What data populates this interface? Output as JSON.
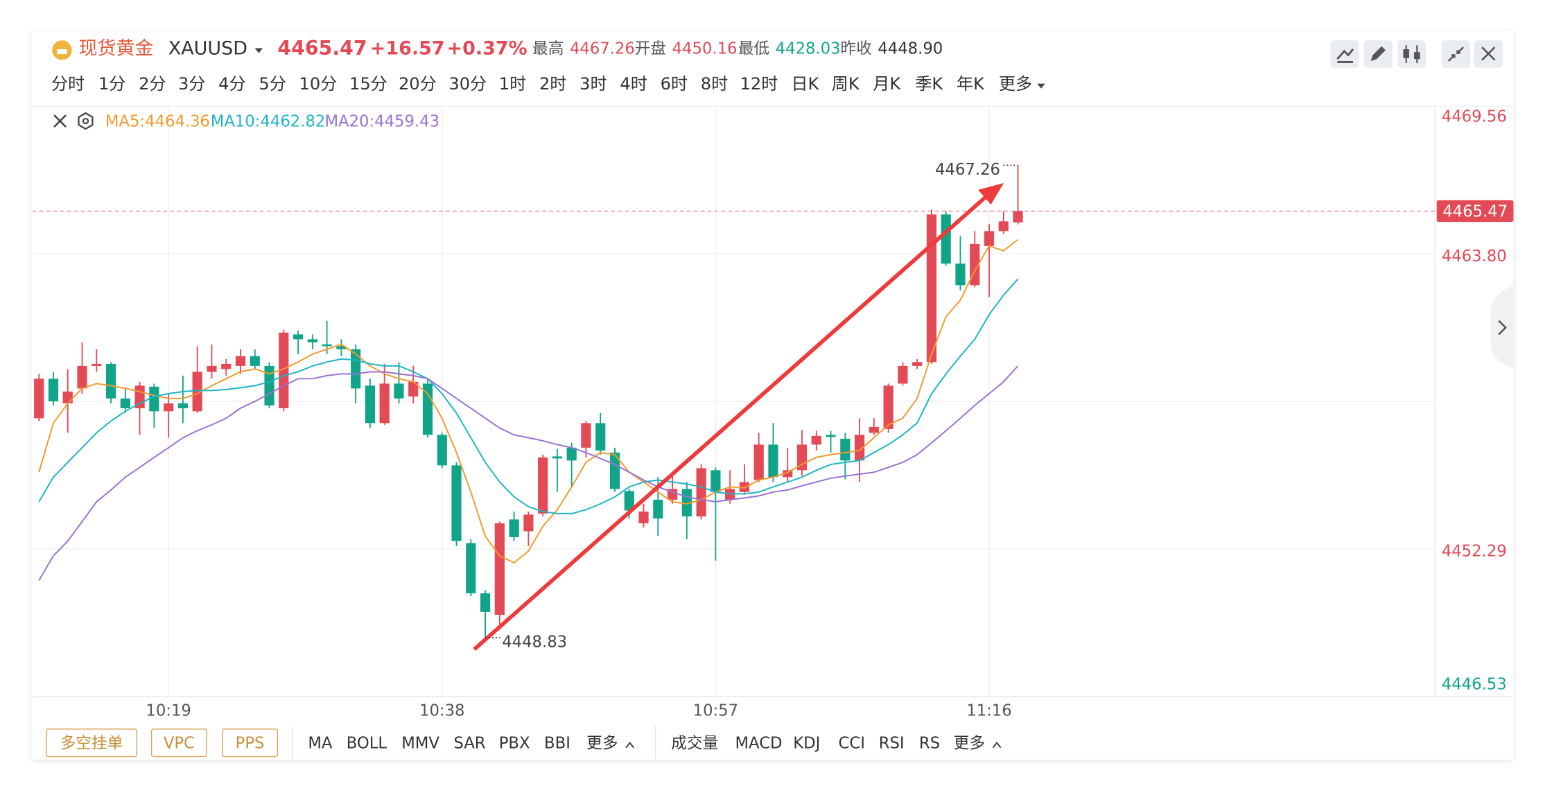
{
  "header": {
    "title": "现货黄金",
    "symbol": "XAUUSD",
    "price": "4465.47",
    "change": "+16.57",
    "change_pct": "+0.37%",
    "stats": [
      {
        "label": "最高",
        "value": "4467.26"
      },
      {
        "label": "开盘",
        "value": "4450.16"
      },
      {
        "label": "最低",
        "value": "4428.03"
      },
      {
        "label": "昨收",
        "value": "4448.90"
      }
    ]
  },
  "timeframes": {
    "items": [
      "分时",
      "1分",
      "2分",
      "3分",
      "4分",
      "5分",
      "10分",
      "15分",
      "20分",
      "30分",
      "1时",
      "2时",
      "3时",
      "4时",
      "6时",
      "8时",
      "12时",
      "日K",
      "周K",
      "月K",
      "季K",
      "年K",
      "更多"
    ],
    "active": 1
  },
  "chart_data": {
    "type": "candlestick",
    "categories": [
      null,
      null,
      null,
      null,
      null,
      null,
      null,
      null,
      null,
      "10:19",
      null,
      null,
      null,
      null,
      null,
      null,
      null,
      null,
      null,
      null,
      null,
      null,
      null,
      null,
      null,
      null,
      null,
      null,
      "10:38",
      null,
      null,
      null,
      null,
      null,
      null,
      null,
      null,
      null,
      null,
      null,
      null,
      null,
      null,
      null,
      null,
      null,
      null,
      "10:57",
      null,
      null,
      null,
      null,
      null,
      null,
      null,
      null,
      null,
      null,
      null,
      null,
      null,
      null,
      null,
      null,
      null,
      null,
      "11:16",
      null,
      null
    ],
    "open": [
      4457.39,
      4458.93,
      4457.97,
      4458.55,
      4459.43,
      4459.51,
      4458.16,
      4457.78,
      4458.62,
      4457.66,
      4457.97,
      4457.66,
      4459.2,
      4459.31,
      4459.43,
      4459.81,
      4459.43,
      4457.78,
      4460.66,
      4460.47,
      4460.27,
      4460.2,
      4460.08,
      4458.66,
      4457.2,
      4458.74,
      4458.24,
      4458.74,
      4456.74,
      4455.55,
      4452.52,
      4450.56,
      4449.72,
      4453.44,
      4452.98,
      4453.67,
      4455.9,
      4456.24,
      4456.24,
      4457.2,
      4456.05,
      4454.55,
      4453.29,
      4454.21,
      4454.21,
      4454.63,
      4453.56,
      4455.36,
      4454.21,
      4454.51,
      4454.98,
      4456.36,
      4455.09,
      4455.36,
      4456.36,
      4456.74,
      4456.59,
      4455.74,
      4456.82,
      4456.97,
      4458.74,
      4459.43,
      4459.58,
      4465.34,
      4463.42,
      4462.58,
      4464.11,
      4464.69,
      4465.03
    ],
    "high": [
      4459.12,
      4459.2,
      4459.31,
      4460.35,
      4460.08,
      4459.58,
      4458.55,
      4458.81,
      4458.74,
      4458.35,
      4459.05,
      4460.2,
      4460.27,
      4459.7,
      4460.08,
      4460.08,
      4459.58,
      4460.85,
      4460.81,
      4460.66,
      4461.19,
      4460.47,
      4460.27,
      4458.93,
      4459.51,
      4459.58,
      4459.43,
      4458.93,
      4456.82,
      4455.67,
      4452.67,
      4450.68,
      4453.36,
      4453.75,
      4453.75,
      4455.97,
      4456.2,
      4456.43,
      4457.28,
      4457.59,
      4456.24,
      4454.63,
      4454.05,
      4455.09,
      4455.21,
      4454.9,
      4455.59,
      4455.47,
      4455.36,
      4455.59,
      4456.82,
      4457.2,
      4456.24,
      4456.93,
      4456.9,
      4456.9,
      4456.82,
      4457.39,
      4457.39,
      4458.74,
      4459.58,
      4459.7,
      4465.53,
      4465.46,
      4464.5,
      4464.69,
      4464.96,
      4465.46,
      4467.26
    ],
    "low": [
      4457.28,
      4457.89,
      4456.82,
      4458.35,
      4459.2,
      4457.97,
      4457.59,
      4456.74,
      4457.01,
      4456.63,
      4457.2,
      4457.59,
      4458.93,
      4459.05,
      4459.12,
      4459.31,
      4457.78,
      4457.66,
      4459.89,
      4460.08,
      4459.89,
      4459.81,
      4457.97,
      4457.01,
      4457.13,
      4457.97,
      4457.97,
      4456.63,
      4455.44,
      4452.4,
      4450.45,
      4448.83,
      4449.14,
      4452.6,
      4452.4,
      4453.56,
      4454.51,
      4454.71,
      4455.86,
      4455.97,
      4454.51,
      4453.48,
      4453.13,
      4452.79,
      4454.05,
      4452.67,
      4453.44,
      4451.83,
      4454.05,
      4454.4,
      4454.9,
      4454.9,
      4454.9,
      4455.13,
      4456.13,
      4456.05,
      4455.01,
      4454.9,
      4456.74,
      4456.82,
      4458.66,
      4459.31,
      4459.51,
      4463.34,
      4462.38,
      4462.5,
      4462.12,
      4464.57,
      4464.95
    ],
    "close": [
      4458.93,
      4458.05,
      4458.43,
      4459.43,
      4459.51,
      4458.16,
      4457.78,
      4458.66,
      4457.66,
      4457.97,
      4457.78,
      4459.2,
      4459.43,
      4459.51,
      4459.81,
      4459.43,
      4457.89,
      4460.73,
      4460.47,
      4460.35,
      4460.2,
      4460.08,
      4458.55,
      4457.2,
      4458.74,
      4458.16,
      4458.81,
      4456.74,
      4455.55,
      4452.6,
      4450.56,
      4449.83,
      4453.29,
      4452.75,
      4453.63,
      4455.86,
      4455.82,
      4455.74,
      4457.2,
      4456.13,
      4454.63,
      4453.79,
      4453.75,
      4453.48,
      4454.63,
      4453.56,
      4455.44,
      4454.51,
      4454.63,
      4454.9,
      4456.36,
      4455.09,
      4455.36,
      4456.36,
      4456.7,
      4456.66,
      4455.74,
      4456.74,
      4457.05,
      4458.66,
      4459.43,
      4459.58,
      4465.34,
      4463.42,
      4462.58,
      4464.19,
      4464.69,
      4465.07,
      4465.47
    ],
    "up_color": "#e34a55",
    "down_color": "#12a488",
    "series": [
      {
        "name": "MA5:4464.36",
        "color": "#f39a2e",
        "values": [
          4455.28,
          4457.2,
          4457.97,
          4458.55,
          4458.74,
          4458.66,
          4458.55,
          4458.43,
          4458.28,
          4458.16,
          4458.16,
          4458.35,
          4458.66,
          4458.93,
          4459.2,
          4459.31,
          4459.12,
          4459.31,
          4459.58,
          4459.89,
          4460.08,
          4460.27,
          4459.89,
          4459.43,
          4459.12,
          4458.93,
          4458.81,
          4458.35,
          4457.39,
          4456.05,
          4454.51,
          4452.79,
          4452.02,
          4451.75,
          4452.21,
          4453.17,
          4453.82,
          4454.71,
          4455.67,
          4456.05,
          4455.97,
          4455.28,
          4454.9,
          4454.51,
          4454.13,
          4454.05,
          4454.21,
          4454.51,
          4454.71,
          4454.67,
          4454.98,
          4455.09,
          4455.28,
          4455.59,
          4455.86,
          4455.97,
          4456.05,
          4456.13,
          4456.63,
          4457.13,
          4457.39,
          4458.16,
          4459.89,
          4461.35,
          4462.0,
          4463.15,
          4464.11,
          4463.92,
          4464.36
        ]
      },
      {
        "name": "MA10:4462.82",
        "color": "#1db5c6",
        "values": [
          4454.13,
          4455.09,
          4455.67,
          4456.24,
          4456.82,
          4457.28,
          4457.66,
          4457.97,
          4458.24,
          4458.35,
          4458.43,
          4458.47,
          4458.47,
          4458.51,
          4458.58,
          4458.66,
          4458.81,
          4459.05,
          4459.2,
          4459.43,
          4459.58,
          4459.7,
          4459.66,
          4459.51,
          4459.43,
          4459.43,
          4459.2,
          4458.93,
          4458.35,
          4457.59,
          4456.63,
          4455.67,
          4454.9,
          4454.32,
          4453.94,
          4453.75,
          4453.67,
          4453.67,
          4453.82,
          4454.05,
          4454.32,
          4454.71,
          4454.9,
          4454.98,
          4454.9,
          4454.82,
          4454.71,
          4454.51,
          4454.44,
          4454.44,
          4454.51,
          4454.71,
          4454.9,
          4455.09,
          4455.36,
          4455.59,
          4455.67,
          4455.74,
          4456.05,
          4456.36,
          4456.74,
          4457.2,
          4458.35,
          4459.12,
          4459.81,
          4460.47,
          4461.43,
          4462.19,
          4462.82
        ]
      },
      {
        "name": "MA20:4459.43",
        "color": "#9a72d4",
        "values": [
          4451.06,
          4452.02,
          4452.6,
          4453.36,
          4454.13,
          4454.59,
          4455.09,
          4455.47,
          4455.86,
          4456.24,
          4456.63,
          4456.9,
          4457.13,
          4457.39,
          4457.78,
          4458.05,
          4458.35,
          4458.66,
          4458.93,
          4458.93,
          4459.05,
          4459.12,
          4459.12,
          4459.2,
          4459.2,
          4459.12,
          4459.05,
          4458.93,
          4458.55,
          4458.16,
          4457.78,
          4457.39,
          4457.01,
          4456.74,
          4456.63,
          4456.51,
          4456.36,
          4456.24,
          4456.05,
          4455.82,
          4455.59,
          4455.28,
          4454.98,
          4454.71,
          4454.51,
          4454.32,
          4454.21,
          4454.13,
          4454.21,
          4454.28,
          4454.36,
          4454.51,
          4454.59,
          4454.75,
          4454.9,
          4455.05,
          4455.13,
          4455.21,
          4455.28,
          4455.47,
          4455.67,
          4455.97,
          4456.43,
          4456.9,
          4457.39,
          4457.89,
          4458.35,
          4458.81,
          4459.43
        ]
      }
    ],
    "ylim": [
      4446.53,
      4469.56
    ],
    "yticks": [
      4469.56,
      {
        "value": 4463.8,
        "label": "4463.80"
      },
      4452.29,
      4446.53
    ],
    "ytick_colors": [
      "#e34a55",
      "#e34a55",
      "#e34a55",
      "#12a488"
    ],
    "grid": true,
    "last_price": 4465.47,
    "extremes": {
      "high": 4467.26,
      "low": 4448.83
    }
  },
  "toolbar": {
    "buttons": [
      "多空挂单",
      "VPC",
      "PPS"
    ],
    "indicators": [
      "MA",
      "BOLL",
      "MMV",
      "SAR",
      "PBX",
      "BBI",
      "更多"
    ],
    "sub_indicators": [
      "成交量",
      "MACD",
      "KDJ",
      "CCI",
      "RSI",
      "RS",
      "更多"
    ]
  }
}
